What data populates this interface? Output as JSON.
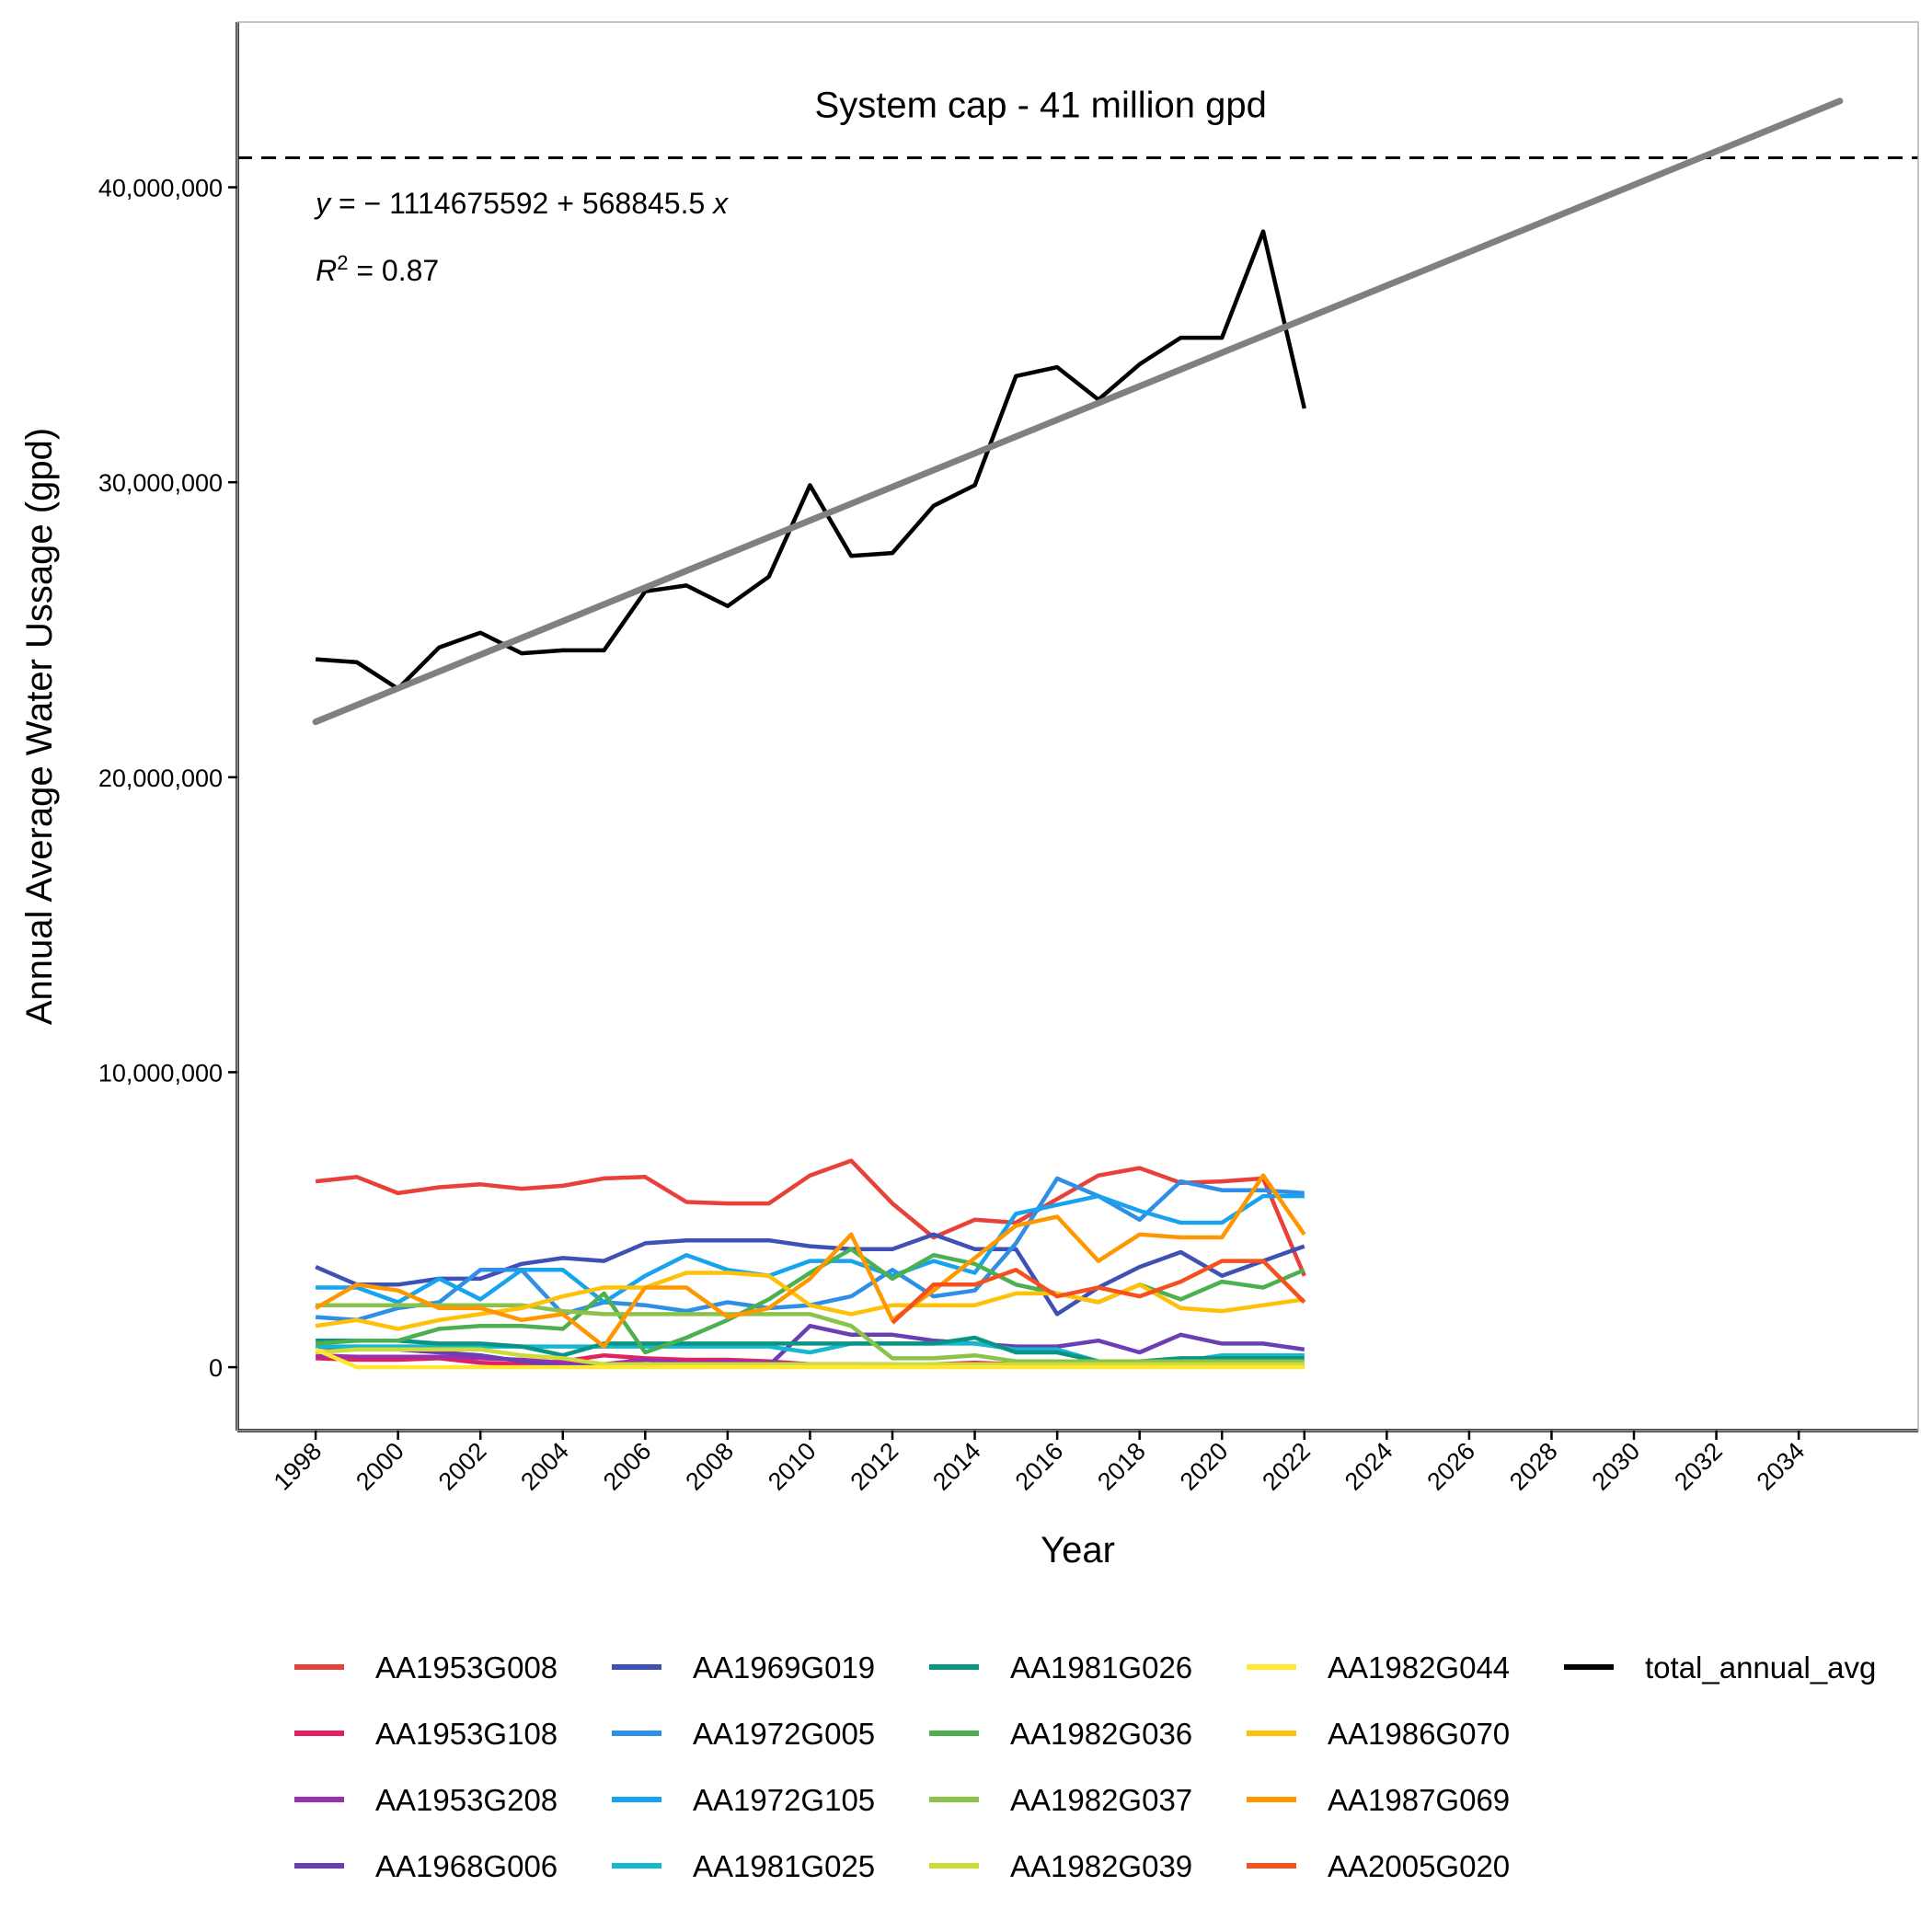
{
  "chart_data": {
    "type": "line",
    "xlabel": "Year",
    "ylabel": "Annual Average Water Ussage (gpd)",
    "xlim": [
      1996.1,
      2036.9
    ],
    "ylim": [
      -2150000,
      45600000
    ],
    "x_ticks": [
      1998,
      2000,
      2002,
      2004,
      2006,
      2008,
      2010,
      2012,
      2014,
      2016,
      2018,
      2020,
      2022,
      2024,
      2026,
      2028,
      2030,
      2032,
      2034
    ],
    "y_ticks": [
      0,
      10000000,
      20000000,
      30000000,
      40000000
    ],
    "y_tick_labels": [
      "0",
      "10,000,000",
      "20,000,000",
      "30,000,000",
      "40,000,000"
    ],
    "grid": false,
    "legend_position": "bottom",
    "cap": {
      "value": 41000000,
      "label": "System cap - 41 million gpd",
      "style": "dashed"
    },
    "regression": {
      "intercept": -1114675592,
      "slope": 568845.5,
      "x_range": [
        1998,
        2035
      ],
      "color": "#808080",
      "equation_parts": [
        "y",
        " = − 1114675592 + 568845.5 ",
        "x"
      ],
      "r2_parts": [
        "R",
        "2",
        " = 0.87"
      ]
    },
    "x": [
      1998,
      1999,
      2000,
      2001,
      2002,
      2003,
      2004,
      2005,
      2006,
      2007,
      2008,
      2009,
      2010,
      2011,
      2012,
      2013,
      2014,
      2015,
      2016,
      2017,
      2018,
      2019,
      2020,
      2021,
      2022
    ],
    "series": [
      {
        "name": "AA1953G008",
        "color": "#E8403A",
        "values": [
          6300000,
          6450000,
          5900000,
          6100000,
          6200000,
          6050000,
          6150000,
          6400000,
          6450000,
          5600000,
          5550000,
          5550000,
          6500000,
          7000000,
          5550000,
          4400000,
          5000000,
          4900000,
          5700000,
          6500000,
          6750000,
          6250000,
          6300000,
          6400000,
          3100000
        ]
      },
      {
        "name": "AA1953G108",
        "color": "#E3215F",
        "values": [
          300000,
          250000,
          250000,
          300000,
          150000,
          100000,
          200000,
          400000,
          300000,
          250000,
          250000,
          200000,
          100000,
          100000,
          50000,
          100000,
          150000,
          100000,
          50000,
          50000,
          50000,
          50000,
          50000,
          50000,
          50000
        ]
      },
      {
        "name": "AA1953G208",
        "color": "#9C2FAE",
        "values": [
          400000,
          350000,
          350000,
          350000,
          300000,
          250000,
          150000,
          100000,
          250000,
          150000,
          200000,
          150000,
          100000,
          100000,
          100000,
          50000,
          50000,
          50000,
          50000,
          50000,
          50000,
          50000,
          50000,
          50000,
          50000
        ]
      },
      {
        "name": "AA1968G006",
        "color": "#6A3FB3",
        "values": [
          700000,
          600000,
          600000,
          500000,
          400000,
          200000,
          50000,
          50000,
          50000,
          50000,
          50000,
          50000,
          1400000,
          1100000,
          1100000,
          900000,
          800000,
          700000,
          700000,
          900000,
          500000,
          1100000,
          800000,
          800000,
          600000
        ]
      },
      {
        "name": "AA1969G019",
        "color": "#3F51B5",
        "values": [
          3400000,
          2800000,
          2800000,
          3000000,
          3000000,
          3500000,
          3700000,
          3600000,
          4200000,
          4300000,
          4300000,
          4300000,
          4100000,
          4000000,
          4000000,
          4500000,
          4000000,
          4000000,
          1800000,
          2700000,
          3400000,
          3900000,
          3100000,
          3600000,
          4100000
        ]
      },
      {
        "name": "AA1972G005",
        "color": "#2F8EE6",
        "values": [
          1700000,
          1600000,
          2000000,
          2200000,
          3300000,
          3300000,
          1800000,
          2200000,
          2100000,
          1900000,
          2200000,
          2000000,
          2100000,
          2400000,
          3300000,
          2400000,
          2600000,
          4200000,
          6400000,
          5800000,
          5000000,
          6300000,
          6000000,
          6000000,
          5900000
        ]
      },
      {
        "name": "AA1972G105",
        "color": "#17A3EE",
        "values": [
          2700000,
          2700000,
          2200000,
          3000000,
          2300000,
          3300000,
          3300000,
          2200000,
          3100000,
          3800000,
          3300000,
          3100000,
          3600000,
          3600000,
          3100000,
          3600000,
          3200000,
          5200000,
          5500000,
          5800000,
          5300000,
          4900000,
          4900000,
          5800000,
          5800000
        ]
      },
      {
        "name": "AA1981G025",
        "color": "#14B8CF",
        "values": [
          700000,
          700000,
          700000,
          700000,
          700000,
          700000,
          700000,
          700000,
          700000,
          700000,
          700000,
          700000,
          500000,
          800000,
          800000,
          800000,
          800000,
          600000,
          600000,
          200000,
          200000,
          200000,
          400000,
          400000,
          400000
        ]
      },
      {
        "name": "AA1981G026",
        "color": "#0A9484",
        "values": [
          900000,
          900000,
          900000,
          800000,
          800000,
          700000,
          400000,
          800000,
          800000,
          800000,
          800000,
          800000,
          800000,
          800000,
          800000,
          800000,
          1000000,
          500000,
          500000,
          200000,
          200000,
          300000,
          300000,
          300000,
          300000
        ]
      },
      {
        "name": "AA1982G036",
        "color": "#4CAF50",
        "values": [
          800000,
          900000,
          900000,
          1300000,
          1400000,
          1400000,
          1300000,
          2500000,
          500000,
          1000000,
          1600000,
          2300000,
          3200000,
          4000000,
          3000000,
          3800000,
          3500000,
          2800000,
          2500000,
          2200000,
          2800000,
          2300000,
          2900000,
          2700000,
          3300000
        ]
      },
      {
        "name": "AA1982G037",
        "color": "#8BC34A",
        "values": [
          2100000,
          2100000,
          2100000,
          2100000,
          2100000,
          2100000,
          1900000,
          1800000,
          1800000,
          1800000,
          1800000,
          1800000,
          1800000,
          1400000,
          300000,
          300000,
          400000,
          200000,
          200000,
          200000,
          200000,
          200000,
          200000,
          200000,
          200000
        ]
      },
      {
        "name": "AA1982G039",
        "color": "#CDDC39",
        "values": [
          500000,
          600000,
          600000,
          600000,
          600000,
          400000,
          300000,
          100000,
          100000,
          100000,
          100000,
          100000,
          100000,
          100000,
          100000,
          100000,
          100000,
          100000,
          100000,
          100000,
          100000,
          100000,
          100000,
          100000,
          100000
        ]
      },
      {
        "name": "AA1982G044",
        "color": "#FFE732",
        "values": [
          600000,
          0,
          0,
          0,
          0,
          0,
          0,
          0,
          0,
          0,
          0,
          0,
          0,
          0,
          0,
          0,
          0,
          0,
          0,
          0,
          0,
          0,
          0,
          0,
          0
        ]
      },
      {
        "name": "AA1986G070",
        "color": "#FFC107",
        "values": [
          1400000,
          1600000,
          1300000,
          1600000,
          1800000,
          2000000,
          2400000,
          2700000,
          2700000,
          3200000,
          3200000,
          3100000,
          2100000,
          1800000,
          2100000,
          2100000,
          2100000,
          2500000,
          2500000,
          2200000,
          2800000,
          2000000,
          1900000,
          2100000,
          2300000
        ]
      },
      {
        "name": "AA1987G069",
        "color": "#FF9800",
        "values": [
          2000000,
          2800000,
          2600000,
          2000000,
          2000000,
          1600000,
          1800000,
          700000,
          2700000,
          2700000,
          1700000,
          2000000,
          3000000,
          4500000,
          1600000,
          2600000,
          3700000,
          4800000,
          5100000,
          3600000,
          4500000,
          4400000,
          4400000,
          6500000,
          4500000
        ]
      },
      {
        "name": "AA2005G020",
        "color": "#F4511E",
        "values": [
          null,
          null,
          null,
          null,
          null,
          null,
          null,
          null,
          null,
          null,
          null,
          null,
          null,
          null,
          1500000,
          2800000,
          2800000,
          3300000,
          2400000,
          2700000,
          2400000,
          2900000,
          3600000,
          3600000,
          2200000
        ]
      },
      {
        "name": "total_annual_avg",
        "color": "#000000",
        "values": [
          24000000,
          23900000,
          23000000,
          24400000,
          24900000,
          24200000,
          24300000,
          24300000,
          26300000,
          26500000,
          25800000,
          26800000,
          29900000,
          27500000,
          27600000,
          29200000,
          29900000,
          33600000,
          33900000,
          32800000,
          34000000,
          34900000,
          34900000,
          38500000,
          32500000
        ]
      }
    ]
  }
}
